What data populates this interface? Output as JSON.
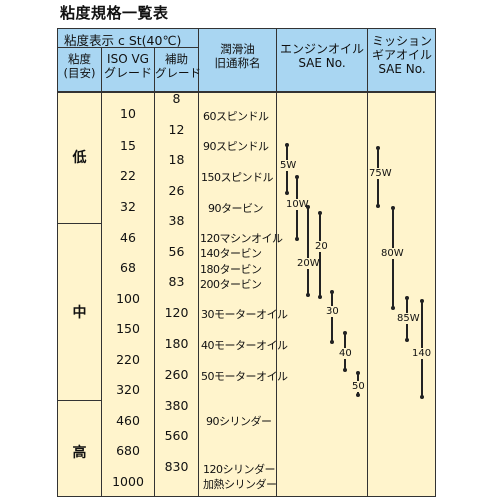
{
  "title": "粘度規格一覧表",
  "header": {
    "viscosity_display": "粘度表示 c St(40℃)",
    "viscosity_level": "粘度\n(目安)",
    "iso_vg_grade": "ISO VG\nグレード",
    "aux_grade": "補助\nグレード",
    "lubricant_old_name": "潤滑油\n旧通称名",
    "engine_oil": "エンジンオイル\nSAE No.",
    "gear_oil": "ミッション\nギアオイル\nSAE No."
  },
  "viscosity_levels": [
    "低",
    "中",
    "高"
  ],
  "iso_vg_values": [
    "10",
    "15",
    "22",
    "32",
    "46",
    "68",
    "100",
    "150",
    "220",
    "320",
    "460",
    "680",
    "1000"
  ],
  "aux_grade_values": [
    "8",
    "12",
    "18",
    "26",
    "38",
    "56",
    "83",
    "120",
    "180",
    "260",
    "380",
    "560",
    "830"
  ],
  "lubricant_names": [
    "60スピンドル",
    "90スピンドル",
    "150スピンドル",
    "90タービン",
    "120マシンオイル",
    "140タービン",
    "180タービン",
    "200タービン",
    "30モーターオイル",
    "40モーターオイル",
    "50モーターオイル",
    "90シリンダー",
    "120シリンダー",
    "加熱シリンダー"
  ],
  "engine_oil_grades": [
    "5W",
    "10W",
    "20W",
    "20",
    "30",
    "40",
    "50"
  ],
  "gear_oil_grades": [
    "75W",
    "80W",
    "85W",
    "140"
  ]
}
